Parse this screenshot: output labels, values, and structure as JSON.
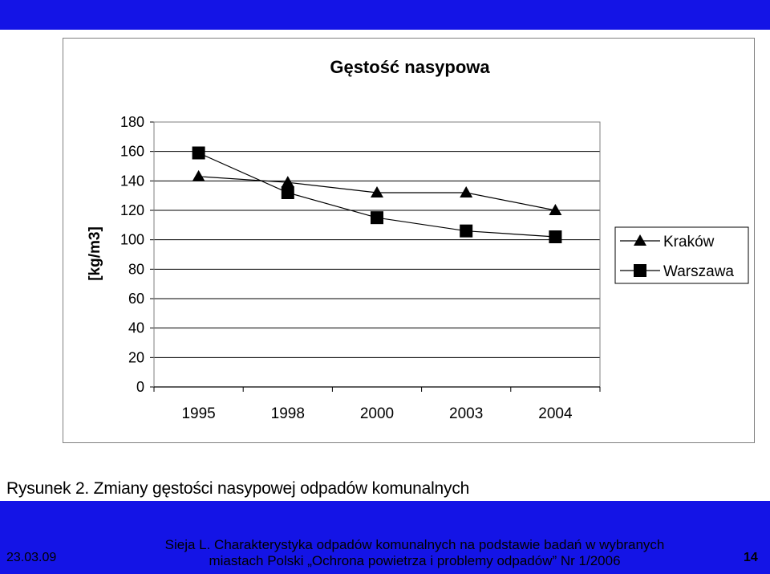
{
  "chart_data": {
    "type": "line",
    "title": "Gęstość nasypowa",
    "ylabel": "[kg/m3]",
    "xlabel": "",
    "categories": [
      "1995",
      "1998",
      "2000",
      "2003",
      "2004"
    ],
    "yticks": [
      "0",
      "20",
      "40",
      "60",
      "80",
      "100",
      "120",
      "140",
      "160",
      "180"
    ],
    "ylim": [
      0,
      180
    ],
    "grid": true,
    "legend_position": "right",
    "series": [
      {
        "name": "Kraków",
        "marker": "triangle",
        "values": [
          143,
          139,
          132,
          132,
          120
        ]
      },
      {
        "name": "Warszawa",
        "marker": "square",
        "values": [
          159,
          132,
          115,
          106,
          102
        ]
      }
    ]
  },
  "caption": "Rysunek 2. Zmiany gęstości nasypowej odpadów komunalnych",
  "footer": {
    "date": "23.03.09",
    "source": "Sieja L. Charakterystyka odpadów komunalnych na podstawie badań w wybranych miastach Polski „Ochrona powietrza i problemy odpadów” Nr 1/2006",
    "page": "14"
  },
  "colors": {
    "bar": "#1414e6",
    "frame": "#7f7f7f",
    "grid": "#000000",
    "line": "#000000"
  }
}
